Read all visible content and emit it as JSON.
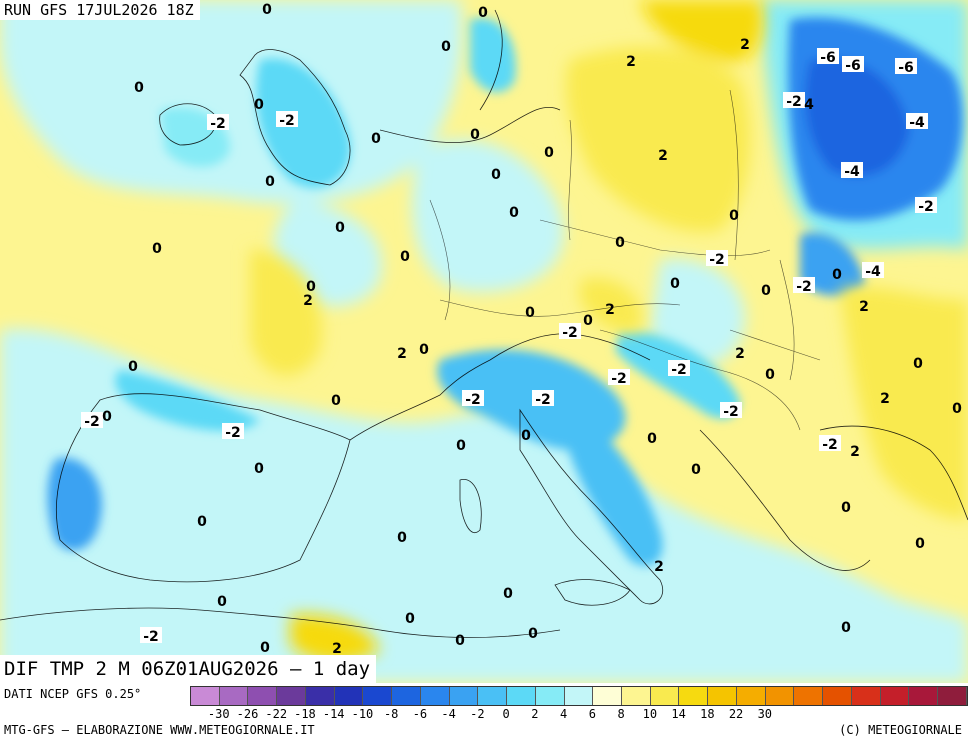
{
  "header": {
    "run": "RUN GFS 17JUL2026 18Z",
    "field": "DIF TMP 2 M 06Z01AUG2026 — 1 day"
  },
  "footer": {
    "source": "DATI NCEP GFS 0.25°",
    "credit": "MTG-GFS — ELABORAZIONE WWW.METEOGIORNALE.IT",
    "copyright": "(C) METEOGIORNALE"
  },
  "legend": {
    "colors": [
      "#c98ad6",
      "#a86ac2",
      "#8e4fb0",
      "#6b3a9b",
      "#3a2fa8",
      "#2233b8",
      "#1a48d0",
      "#1d65e0",
      "#2a86ee",
      "#3aa2f2",
      "#4ac0f5",
      "#5cd9f6",
      "#86ebf6",
      "#c3f6f8",
      "#fefed6",
      "#fdf591",
      "#f9ea4f",
      "#f6da10",
      "#f5c400",
      "#f5ad00",
      "#f29300",
      "#ee7300",
      "#e55200",
      "#d8301a",
      "#c41f2a",
      "#a8183a",
      "#8f1d3c"
    ],
    "ticks": [
      "-30",
      "-26",
      "-22",
      "-18",
      "-14",
      "-10",
      "-8",
      "-6",
      "-4",
      "-2",
      "0",
      "2",
      "4",
      "6",
      "8",
      "10",
      "14",
      "18",
      "22",
      "30"
    ]
  },
  "map_labels": [
    "0",
    "0",
    "0",
    "0",
    "2",
    "2",
    "-6",
    "-6",
    "-6",
    "-2",
    "4",
    "-4",
    "0",
    "-2",
    "-2",
    "0",
    "0",
    "0",
    "0",
    "2",
    "0",
    "-4",
    "0",
    "0",
    "-2",
    "0",
    "0",
    "0",
    "0",
    "0",
    "-2",
    "-2",
    "0",
    "-4",
    "2",
    "0",
    "2",
    "2",
    "0",
    "-2",
    "0",
    "0",
    "2",
    "0",
    "2",
    "0",
    "0",
    "-2",
    "-2",
    "-2",
    "-2",
    "2",
    "-2",
    "0",
    "-2",
    "-2",
    "0",
    "0",
    "0",
    "0",
    "-2",
    "0",
    "0",
    "2",
    "0",
    "0",
    "0",
    "0",
    "0",
    "0",
    "2",
    "0",
    "0",
    "0",
    "-2",
    "0",
    "2",
    "0",
    "0",
    "0",
    "0",
    "0",
    "0",
    "0"
  ]
}
